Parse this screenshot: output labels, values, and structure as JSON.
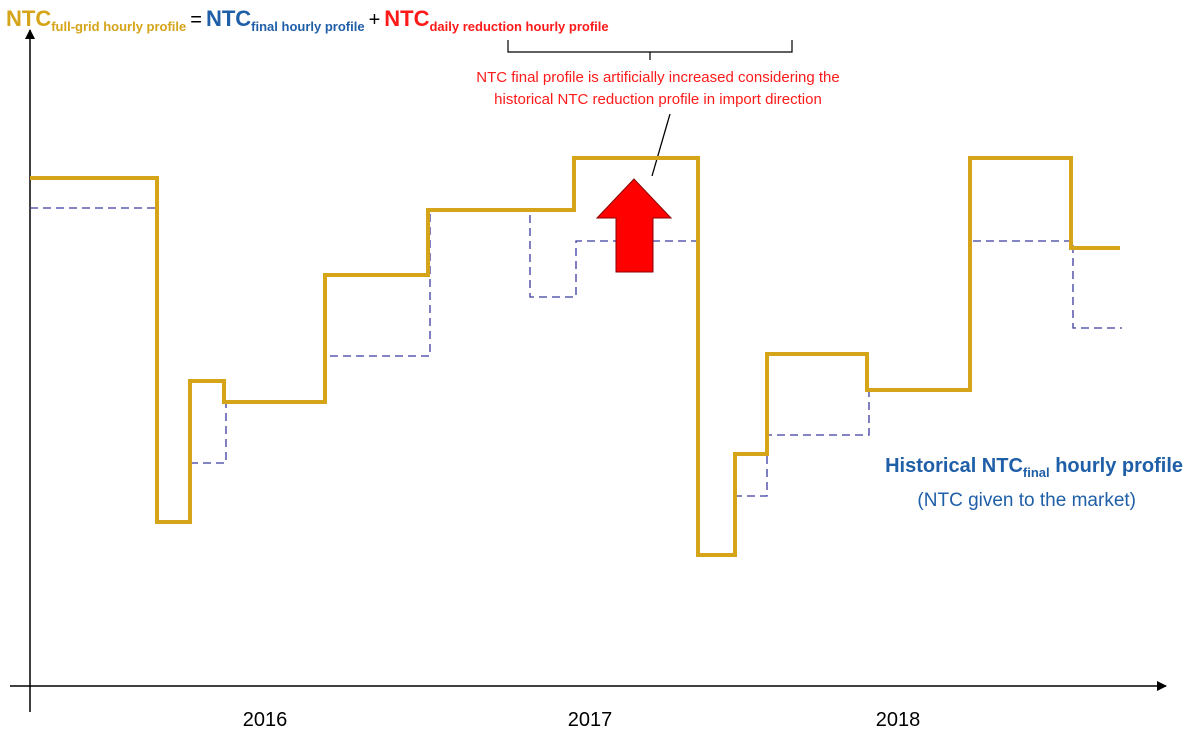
{
  "formula": {
    "lhs": "NTC",
    "lhs_sub": "full-grid hourly profile",
    "equals": "=",
    "term1": "NTC",
    "term1_sub": "final hourly profile",
    "plus": "+",
    "term2": "NTC",
    "term2_sub": "daily reduction hourly profile"
  },
  "annotation": [
    "NTC final profile is artificially increased considering the",
    "historical NTC reduction profile in import direction"
  ],
  "legend": {
    "title": "Historical NTC",
    "title_sub": "final",
    "title_rest": " hourly profile",
    "note": "(NTC given to the market)"
  },
  "x_labels": [
    "2016",
    "2017",
    "2018"
  ]
}
